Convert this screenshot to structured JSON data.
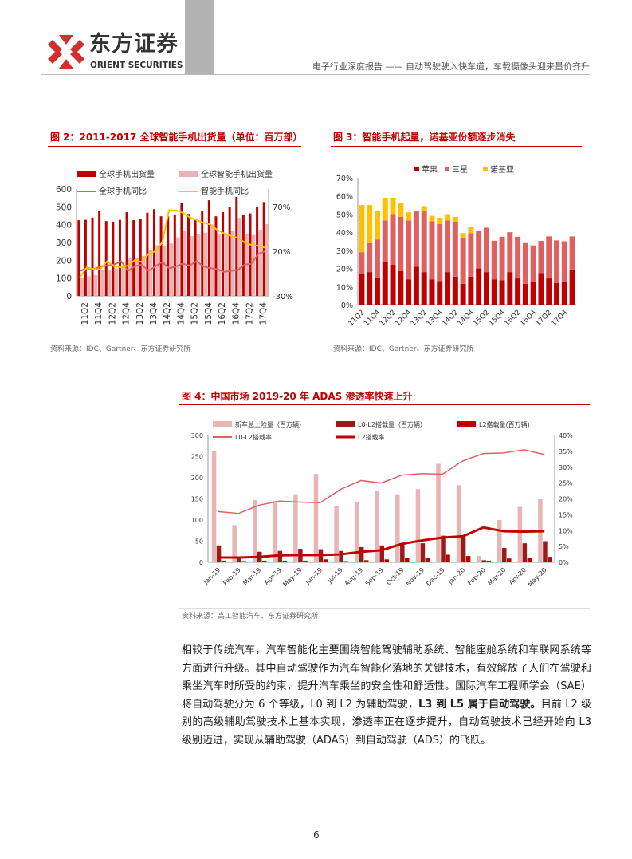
{
  "header": {
    "logo_cn": "东方证券",
    "logo_en": "ORIENT SECURITIES",
    "report_title": "电子行业深度报告 —— 自动驾驶驶入快车道，车载摄像头迎来量价齐升"
  },
  "figures": [
    {
      "title": "图 2：2011-2017 全球智能手机出货量（单位：百万部）",
      "source": "资料来源：IDC、Gartner、东方证券研究所"
    },
    {
      "title": "图 3：智能手机起量，诺基亚份额逐步消失",
      "source": "资料来源：IDC、Gartner、东方证券研究所"
    },
    {
      "title": "图 4：中国市场 2019-20 年 ADAS 渗透率快速上升",
      "source": "资料来源：高工智能汽车、东方证券研究所"
    }
  ],
  "colors": {
    "brand_red": "#c00000",
    "dark_red": "#c00000",
    "pink": "#e8b4b4",
    "salmon": "#e06060",
    "yellow": "#ffc000",
    "maroon": "#9b1b1b"
  },
  "chart_data": [
    {
      "type": "bar+line",
      "categories": [
        "11Q1",
        "11Q2",
        "11Q3",
        "11Q4",
        "12Q1",
        "12Q2",
        "12Q3",
        "12Q4",
        "13Q1",
        "13Q2",
        "13Q3",
        "13Q4",
        "14Q1",
        "14Q2",
        "14Q3",
        "14Q4",
        "15Q1",
        "15Q2",
        "15Q3",
        "15Q4",
        "16Q1",
        "16Q2",
        "16Q3",
        "16Q4",
        "17Q1",
        "17Q2",
        "17Q3",
        "17Q4"
      ],
      "series": [
        {
          "name": "全球手机出货量",
          "kind": "bar",
          "axis": "left",
          "values": [
            425,
            427,
            440,
            475,
            420,
            417,
            427,
            470,
            425,
            433,
            467,
            487,
            447,
            447,
            455,
            523,
            460,
            433,
            477,
            537,
            447,
            470,
            497,
            555,
            457,
            463,
            500,
            527
          ]
        },
        {
          "name": "全球智能手机出货量",
          "kind": "bar",
          "axis": "left",
          "values": [
            100,
            110,
            117,
            145,
            147,
            155,
            170,
            210,
            210,
            225,
            260,
            285,
            280,
            295,
            328,
            368,
            335,
            345,
            355,
            400,
            350,
            345,
            365,
            438,
            350,
            342,
            372,
            403
          ]
        },
        {
          "name": "全球手机同比",
          "kind": "line",
          "axis": "right",
          "values": [
            -2,
            1,
            0,
            3,
            4,
            5,
            9,
            -2,
            3,
            5,
            -2,
            3,
            8,
            1,
            3,
            6,
            4,
            9,
            3,
            1,
            0,
            -3,
            -2,
            -1,
            5,
            6,
            17,
            20
          ]
        },
        {
          "name": "智能手机同比",
          "kind": "line",
          "axis": "right",
          "values": [
            -9,
            2,
            0,
            0,
            9,
            3,
            2,
            4,
            10,
            8,
            17,
            20,
            30,
            66,
            66,
            63,
            58,
            55,
            52,
            50,
            44,
            40,
            37,
            35,
            30,
            27,
            26,
            24
          ]
        }
      ],
      "left_ticks": [
        "0",
        "100",
        "200",
        "300",
        "400",
        "500",
        "600"
      ],
      "right_ticks": [
        "-30%",
        "20%",
        "70%"
      ],
      "ylim": [
        0,
        600
      ],
      "y2lim": [
        -30,
        70
      ],
      "legend": "top"
    },
    {
      "type": "stacked-bar",
      "categories": [
        "11Q1",
        "11Q2",
        "11Q3",
        "11Q4",
        "12Q1",
        "12Q2",
        "12Q3",
        "12Q4",
        "13Q1",
        "13Q2",
        "13Q3",
        "13Q4",
        "14Q1",
        "14Q2",
        "14Q3",
        "14Q4",
        "15Q1",
        "15Q2",
        "15Q3",
        "15Q4",
        "16Q1",
        "16Q2",
        "16Q3",
        "16Q4",
        "17Q1",
        "17Q2",
        "17Q3",
        "17Q4"
      ],
      "series": [
        {
          "name": "苹果",
          "values": [
            17,
            18,
            15,
            23.5,
            22,
            18.5,
            14,
            21,
            18,
            14,
            13,
            18,
            15.5,
            11.5,
            15.5,
            20,
            18,
            14,
            13.5,
            18,
            14.5,
            11.5,
            12.5,
            17.5,
            14.5,
            12,
            12.5,
            19
          ]
        },
        {
          "name": "三星",
          "values": [
            12,
            16,
            21,
            23,
            28,
            30,
            32.5,
            31,
            33.5,
            32,
            31.5,
            28.5,
            30.3,
            25.5,
            24,
            20.7,
            24.5,
            21.3,
            24,
            22,
            23,
            22.5,
            20.2,
            17.7,
            23.2,
            23.5,
            22.5,
            18.7
          ]
        },
        {
          "name": "诺基亚",
          "values": [
            26,
            21,
            16,
            12.5,
            9,
            7.5,
            4.5,
            0,
            3,
            3,
            3.5,
            3.5,
            2.7,
            2.5,
            3.5,
            0,
            0,
            0,
            0,
            0,
            0,
            0,
            0,
            0,
            0,
            0,
            0,
            0
          ]
        }
      ],
      "y_ticks": [
        "0%",
        "10%",
        "20%",
        "30%",
        "40%",
        "50%",
        "60%",
        "70%"
      ],
      "ylim": [
        0,
        70
      ],
      "legend": "top"
    },
    {
      "type": "bar+line",
      "categories": [
        "Jan-19",
        "Feb-19",
        "Mar-19",
        "Apr-19",
        "May-19",
        "Jun-19",
        "Jul-19",
        "Aug-19",
        "Sep-19",
        "Oct-19",
        "Nov-19",
        "Dec-19",
        "Jan-20",
        "Feb-20",
        "Mar-20",
        "Apr-20",
        "May-20"
      ],
      "series": [
        {
          "name": "新车总上险量（百万辆）",
          "kind": "bar",
          "axis": "left",
          "values": [
            263,
            88,
            147,
            145,
            161,
            209,
            133,
            143,
            168,
            161,
            173,
            233,
            182,
            15,
            100,
            131,
            149
          ]
        },
        {
          "name": "L0-L2搭载量（百万辆）",
          "kind": "bar",
          "axis": "left",
          "values": [
            40,
            10,
            25,
            27,
            32,
            31,
            27,
            36,
            40,
            45,
            45,
            63,
            60,
            5,
            34,
            45,
            50
          ]
        },
        {
          "name": "L2搭载量(百万辆)",
          "kind": "bar",
          "axis": "left",
          "values": [
            4,
            3,
            4,
            4,
            4,
            7,
            3,
            5,
            7,
            11,
            11,
            18,
            15,
            4,
            9,
            10,
            13
          ]
        },
        {
          "name": "L0-L2搭载率",
          "kind": "line",
          "axis": "right",
          "values": [
            16,
            15.4,
            18,
            19.3,
            19,
            18.8,
            23,
            25.8,
            25,
            27.5,
            28,
            27.8,
            32,
            34.3,
            34.5,
            35.5,
            34
          ]
        },
        {
          "name": "L2搭载率",
          "kind": "line",
          "axis": "right",
          "values": [
            1.5,
            1.5,
            1.7,
            2.2,
            2.3,
            2.3,
            2.5,
            3.3,
            3.8,
            5.8,
            6.9,
            7.8,
            8.2,
            11,
            9.8,
            9.7,
            9.8
          ]
        }
      ],
      "left_ticks": [
        "0",
        "50",
        "100",
        "150",
        "200",
        "250",
        "300"
      ],
      "right_ticks": [
        "0%",
        "5%",
        "10%",
        "15%",
        "20%",
        "25%",
        "30%",
        "35%",
        "40%"
      ],
      "ylim": [
        0,
        300
      ],
      "y2lim": [
        0,
        40
      ],
      "legend": "top"
    }
  ],
  "body": {
    "p1": "相较于传统汽车，汽车智能化主要围绕智能驾驶辅助系统、智能座舱系统和车联网系统等方面进行升级。其中自动驾驶作为汽车智能化落地的关键技术，有效解放了人们在驾驶和乘坐汽车时所受的约束，提升汽车乘坐的安全性和舒适性。国际汽车工程师学会（SAE）将自动驾驶分为 6 个等级，L0 到 L2 为辅助驾驶，",
    "p1_bold": "L3 到 L5 属于自动驾驶。",
    "p1_rest": "目前 L2 级别的高级辅助驾驶技术上基本实现，渗透率正在逐步提升，自动驾驶技术已经开始向 L3 级别迈进，实现从辅助驾驶（ADAS）到自动驾驶（ADS）的飞跃。"
  },
  "page_number": "6"
}
